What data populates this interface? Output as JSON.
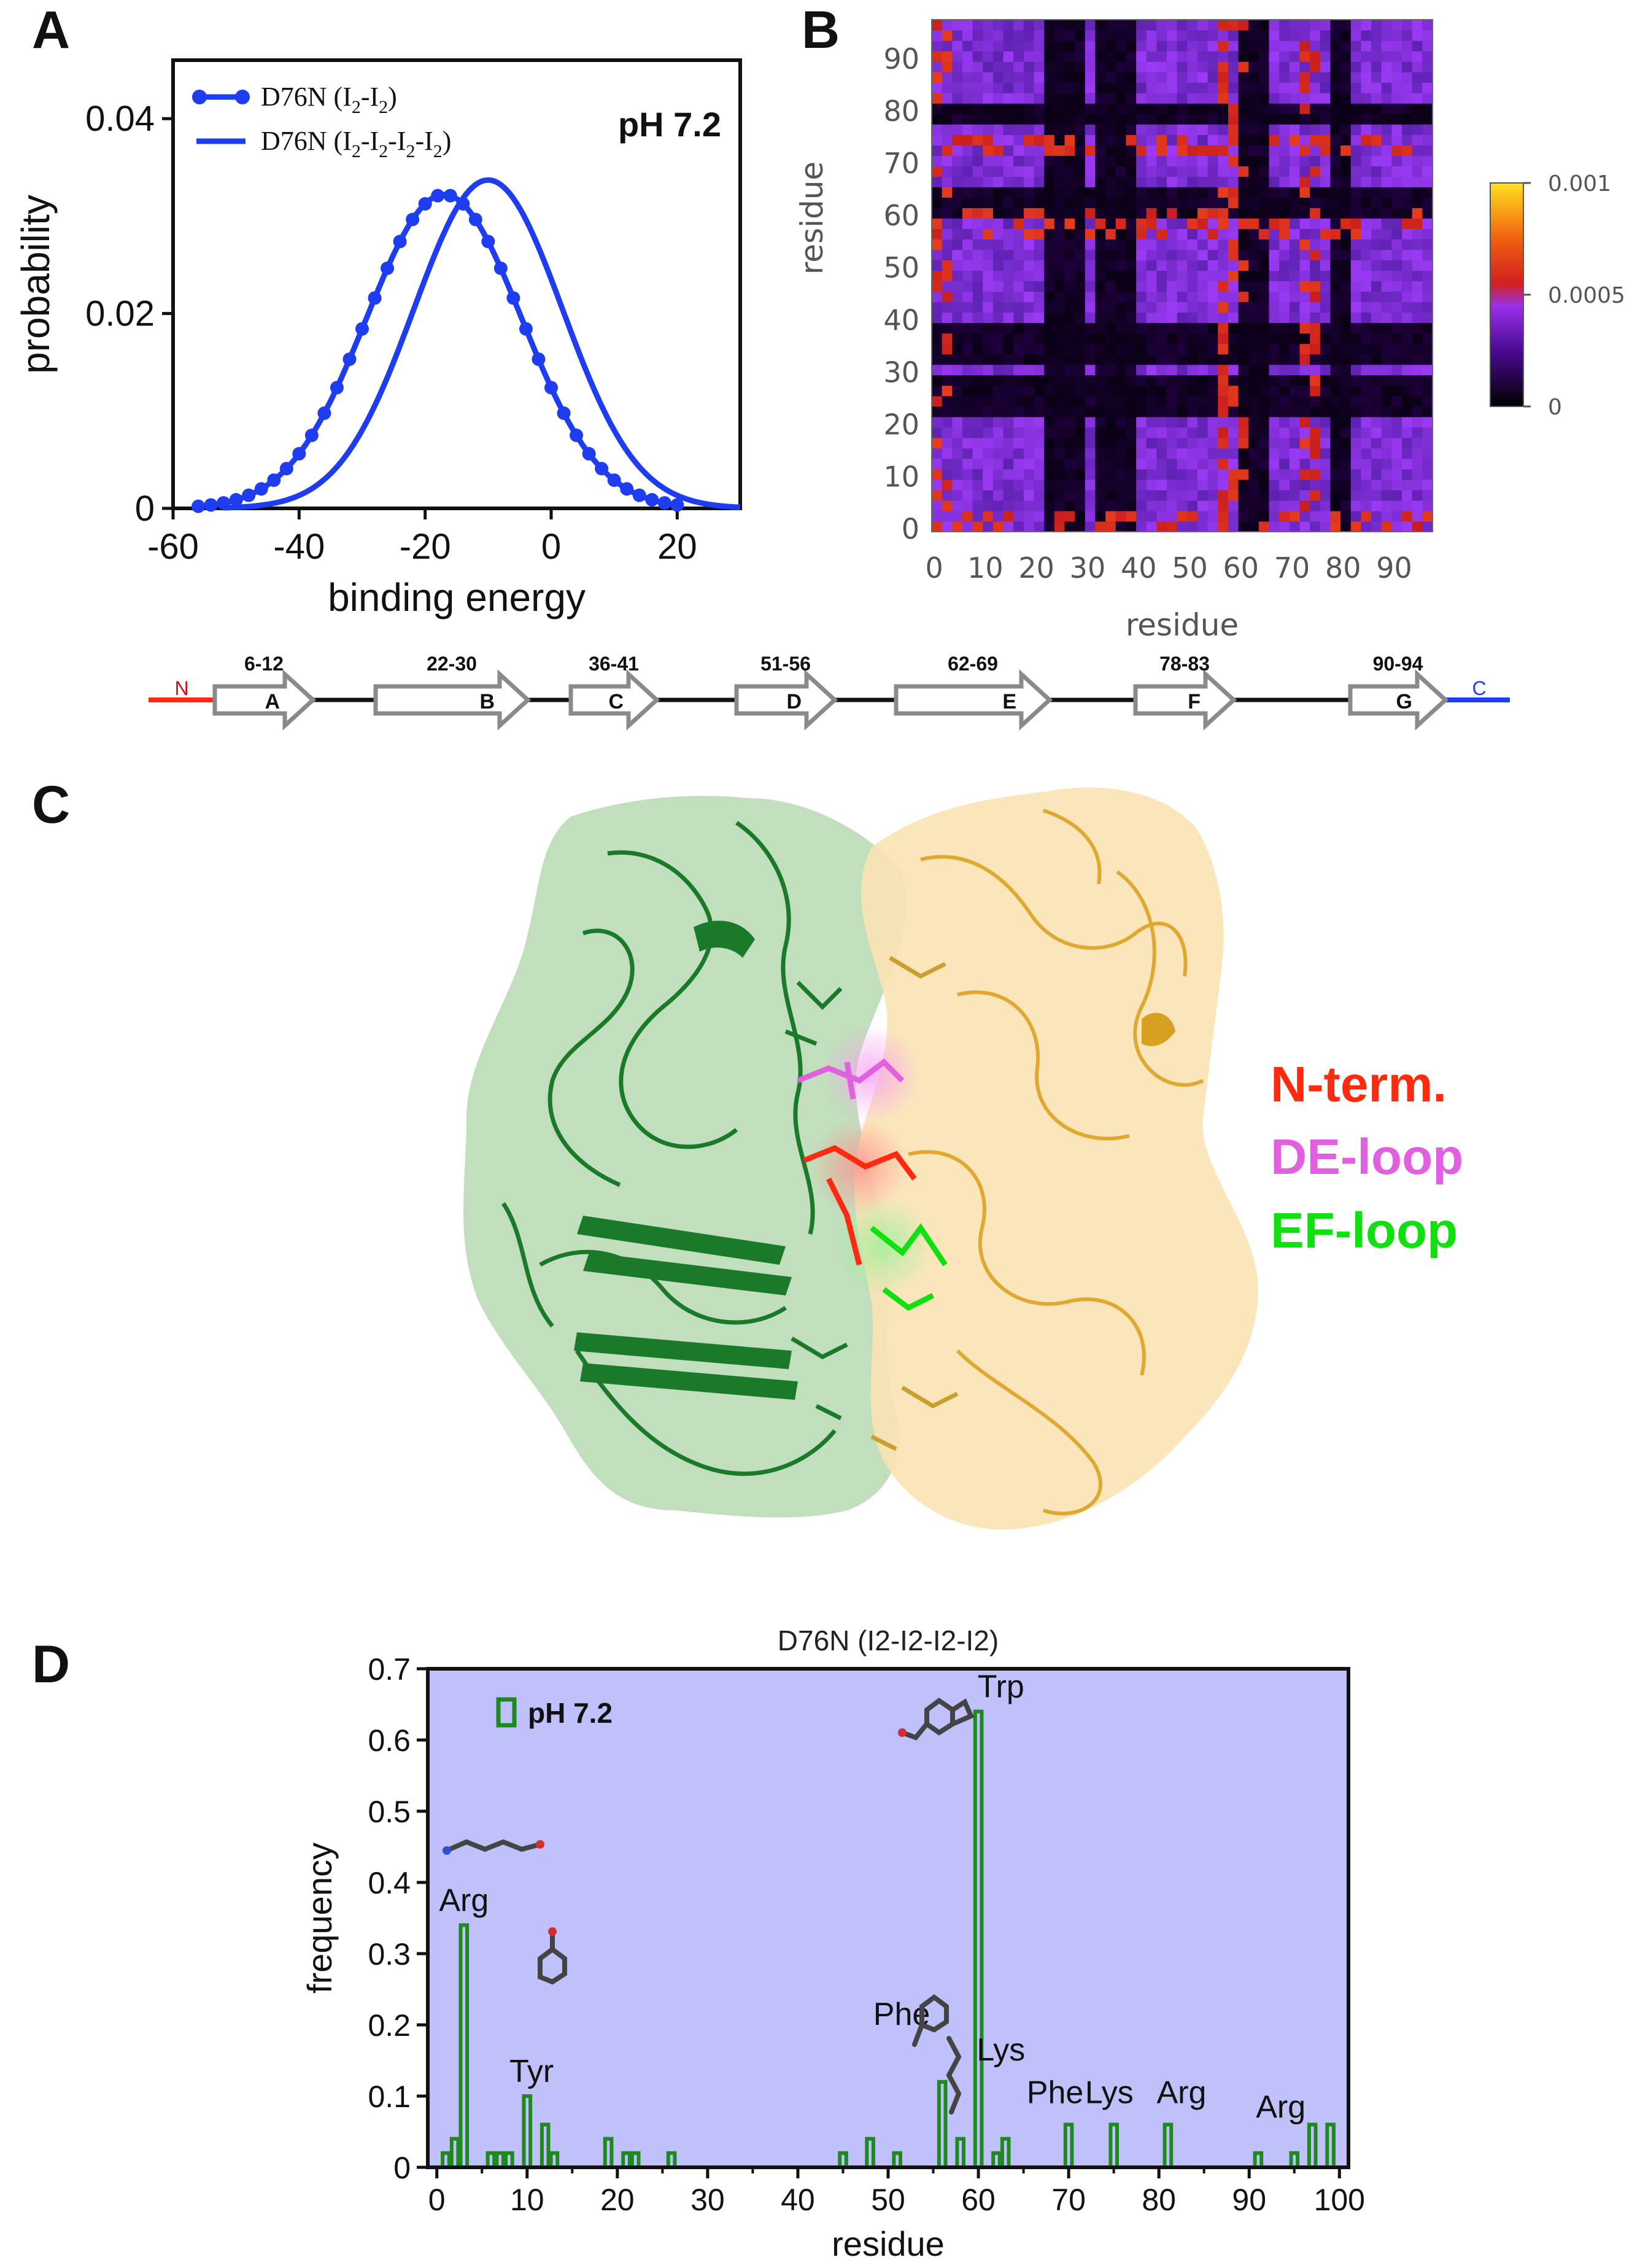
{
  "panels": {
    "a": "A",
    "b": "B",
    "c": "C",
    "d": "D"
  },
  "colors": {
    "blue": "#1f3df0",
    "green_bar": "#1e8a1e",
    "panel_d_bg": "#c0c0fb",
    "n_term": "#ff2a10",
    "de_loop": "#e060e0",
    "ef_loop": "#10e010",
    "chain_green": "#1a7a2a",
    "chain_gold": "#e8b030"
  },
  "chart_a": {
    "type": "line",
    "ph_label": "pH 7.2",
    "xlabel": "binding energy",
    "ylabel": "probability",
    "xlim": [
      -60,
      30
    ],
    "ylim": [
      0,
      0.046
    ],
    "xticks": [
      "-60",
      "-40",
      "-20",
      "0",
      "20"
    ],
    "xtick_values": [
      -60,
      -40,
      -20,
      0,
      20
    ],
    "yticks": [
      "0",
      "0.02",
      "0.04"
    ],
    "ytick_values": [
      0,
      0.02,
      0.04
    ],
    "legend": {
      "dimer": {
        "main": "D76N (I",
        "sub": "2",
        "mid": "-I",
        "end": ")"
      },
      "tetramer": {
        "main": "D76N (I",
        "sub": "2",
        "mid": "-I",
        "end": ")"
      }
    },
    "series": [
      {
        "key": "dimer",
        "mean": -17,
        "sd": 12.3,
        "peak": 0.0322,
        "markers": true
      },
      {
        "key": "tetramer",
        "mean": -10,
        "sd": 11.8,
        "peak": 0.0337,
        "markers": false
      }
    ]
  },
  "chart_b": {
    "type": "heatmap",
    "xlabel": "residue",
    "ylabel": "residue",
    "xticks": [
      "0",
      "10",
      "20",
      "30",
      "40",
      "50",
      "60",
      "70",
      "80",
      "90"
    ],
    "yticks": [
      "0",
      "10",
      "20",
      "30",
      "40",
      "50",
      "60",
      "70",
      "80",
      "90"
    ],
    "tick_values": [
      0,
      10,
      20,
      30,
      40,
      50,
      60,
      70,
      80,
      90
    ],
    "range": [
      0,
      98
    ],
    "colorbar_ticks": [
      "0.001",
      "0.0005",
      "0"
    ],
    "colorbar_values": [
      0.001,
      0.0005,
      0
    ],
    "weak_bands": [
      [
        21,
        28
      ],
      [
        32,
        38
      ],
      [
        60,
        64
      ],
      [
        78,
        80
      ]
    ],
    "hot_bands": [
      [
        58,
        60
      ],
      [
        0,
        2
      ],
      [
        72,
        74
      ],
      [
        55,
        57
      ]
    ]
  },
  "topology": {
    "n_label": "N",
    "c_label": "C",
    "strands": [
      {
        "range": "6-12",
        "letter": "A"
      },
      {
        "range": "22-30",
        "letter": "B"
      },
      {
        "range": "36-41",
        "letter": "C"
      },
      {
        "range": "51-56",
        "letter": "D"
      },
      {
        "range": "62-69",
        "letter": "E"
      },
      {
        "range": "78-83",
        "letter": "F"
      },
      {
        "range": "90-94",
        "letter": "G"
      }
    ]
  },
  "structure_labels": {
    "n_term": "N-term.",
    "de_loop": "DE-loop",
    "ef_loop": "EF-loop"
  },
  "chart_data": {
    "type": "bar",
    "title": "D76N (I2-I2-I2-I2)",
    "xlabel": "residue",
    "ylabel": "frequency",
    "xlim": [
      -1,
      101
    ],
    "ylim": [
      0,
      0.7
    ],
    "legend": "pH 7.2",
    "xticks": [
      "0",
      "10",
      "20",
      "30",
      "40",
      "50",
      "60",
      "70",
      "80",
      "90",
      "100"
    ],
    "xtick_values": [
      0,
      10,
      20,
      30,
      40,
      50,
      60,
      70,
      80,
      90,
      100
    ],
    "yticks": [
      "0",
      "0.1",
      "0.2",
      "0.3",
      "0.4",
      "0.5",
      "0.6",
      "0.7"
    ],
    "ytick_values": [
      0,
      0.1,
      0.2,
      0.3,
      0.4,
      0.5,
      0.6,
      0.7
    ],
    "x": [
      1,
      2,
      3,
      6,
      7,
      8,
      10,
      12,
      13,
      19,
      21,
      22,
      26,
      45,
      48,
      51,
      56,
      58,
      60,
      62,
      63,
      70,
      75,
      81,
      91,
      95,
      97,
      99
    ],
    "values": [
      0.02,
      0.04,
      0.34,
      0.02,
      0.02,
      0.02,
      0.1,
      0.06,
      0.02,
      0.04,
      0.02,
      0.02,
      0.02,
      0.02,
      0.04,
      0.02,
      0.12,
      0.04,
      0.64,
      0.02,
      0.04,
      0.06,
      0.06,
      0.06,
      0.02,
      0.02,
      0.06,
      0.06
    ],
    "annotations": [
      {
        "text": "Arg",
        "x": 3,
        "y": 0.36
      },
      {
        "text": "Tyr",
        "x": 10.5,
        "y": 0.12
      },
      {
        "text": "Phe",
        "x": 51.5,
        "y": 0.2
      },
      {
        "text": "Lys",
        "x": 62.5,
        "y": 0.15
      },
      {
        "text": "Trp",
        "x": 62.5,
        "y": 0.66
      },
      {
        "text": "Phe",
        "x": 68.5,
        "y": 0.09
      },
      {
        "text": "Lys",
        "x": 74.5,
        "y": 0.09
      },
      {
        "text": "Arg",
        "x": 82.5,
        "y": 0.09
      },
      {
        "text": "Arg",
        "x": 93.5,
        "y": 0.07
      }
    ]
  }
}
